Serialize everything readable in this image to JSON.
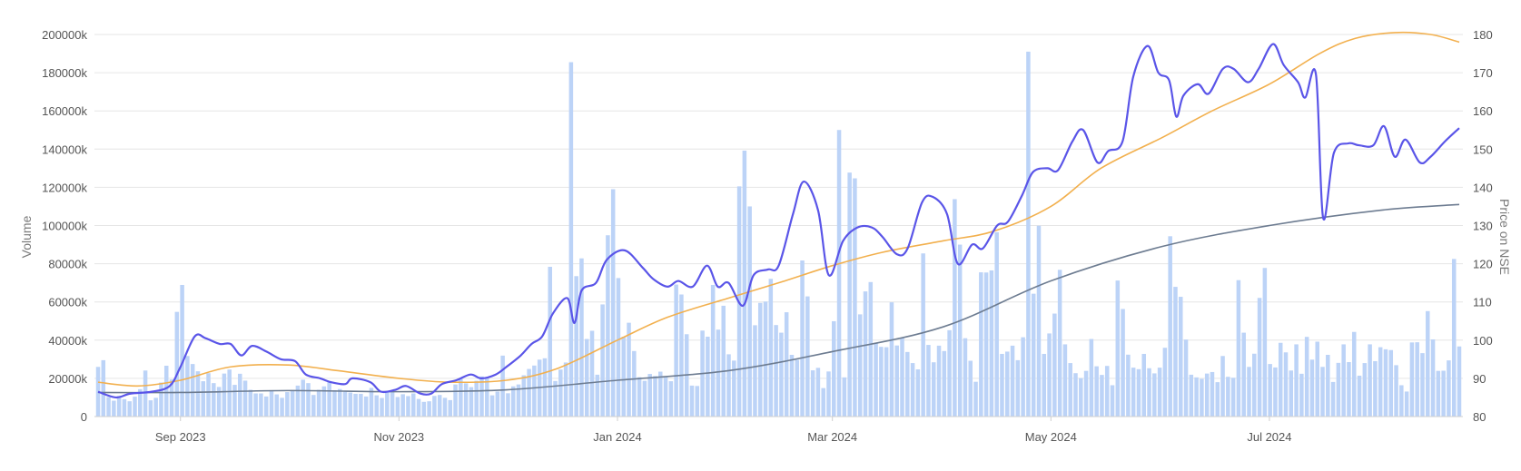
{
  "chart_data": {
    "type": "bar",
    "title": "",
    "legend": "none",
    "grid": true,
    "colors": {
      "volume_bars": "#bcd3f7",
      "price": "#5a55e8",
      "ma_short": "#f2b04e",
      "ma_long": "#6d7c91",
      "grid": "#e6e6e6",
      "text": "#555555"
    },
    "y_left": {
      "label": "Volume",
      "ylim": [
        0,
        200000
      ],
      "ticks": [
        "0",
        "20000k",
        "40000k",
        "60000k",
        "80000k",
        "100000k",
        "120000k",
        "140000k",
        "160000k",
        "180000k",
        "200000k"
      ]
    },
    "y_right": {
      "label": "Price on NSE",
      "ylim": [
        80,
        180
      ],
      "ticks": [
        "80",
        "90",
        "100",
        "110",
        "120",
        "130",
        "140",
        "150",
        "160",
        "170",
        "180"
      ]
    },
    "x_axis": {
      "start": "2023-08-09",
      "end": "2024-08-23",
      "ticks": [
        {
          "label": "Sep 2023",
          "date": "2023-09-01"
        },
        {
          "label": "Nov 2023",
          "date": "2023-11-01"
        },
        {
          "label": "Jan 2024",
          "date": "2024-01-01"
        },
        {
          "label": "Mar 2024",
          "date": "2024-03-01"
        },
        {
          "label": "May 2024",
          "date": "2024-05-01"
        },
        {
          "label": "Jul 2024",
          "date": "2024-07-01"
        }
      ]
    },
    "series": [
      {
        "type": "line",
        "axis": "right",
        "values": [
          [
            "2023-08-09",
            86.5
          ],
          [
            "2023-08-14",
            85.0
          ],
          [
            "2023-08-18",
            86.0
          ],
          [
            "2023-08-24",
            86.5
          ],
          [
            "2023-08-29",
            88.0
          ],
          [
            "2023-09-01",
            93.0
          ],
          [
            "2023-09-05",
            101.0
          ],
          [
            "2023-09-08",
            100.5
          ],
          [
            "2023-09-12",
            99.0
          ],
          [
            "2023-09-15",
            99.0
          ],
          [
            "2023-09-18",
            96.0
          ],
          [
            "2023-09-21",
            98.5
          ],
          [
            "2023-09-25",
            97.0
          ],
          [
            "2023-09-29",
            95.0
          ],
          [
            "2023-10-03",
            94.5
          ],
          [
            "2023-10-06",
            91.0
          ],
          [
            "2023-10-10",
            90.0
          ],
          [
            "2023-10-13",
            89.0
          ],
          [
            "2023-10-17",
            88.5
          ],
          [
            "2023-10-19",
            90.0
          ],
          [
            "2023-10-24",
            89.0
          ],
          [
            "2023-10-27",
            86.5
          ],
          [
            "2023-10-31",
            87.0
          ],
          [
            "2023-11-03",
            88.0
          ],
          [
            "2023-11-07",
            86.0
          ],
          [
            "2023-11-10",
            86.0
          ],
          [
            "2023-11-13",
            88.5
          ],
          [
            "2023-11-17",
            89.5
          ],
          [
            "2023-11-21",
            91.0
          ],
          [
            "2023-11-24",
            90.0
          ],
          [
            "2023-11-28",
            91.0
          ],
          [
            "2023-12-01",
            93.0
          ],
          [
            "2023-12-05",
            96.0
          ],
          [
            "2023-12-08",
            99.0
          ],
          [
            "2023-12-11",
            101.0
          ],
          [
            "2023-12-14",
            107.0
          ],
          [
            "2023-12-18",
            111.0
          ],
          [
            "2023-12-20",
            104.5
          ],
          [
            "2023-12-22",
            113.0
          ],
          [
            "2023-12-26",
            115.0
          ],
          [
            "2023-12-29",
            121.0
          ],
          [
            "2024-01-03",
            123.5
          ],
          [
            "2024-01-08",
            119.0
          ],
          [
            "2024-01-11",
            116.0
          ],
          [
            "2024-01-15",
            114.0
          ],
          [
            "2024-01-18",
            115.5
          ],
          [
            "2024-01-22",
            114.0
          ],
          [
            "2024-01-26",
            119.5
          ],
          [
            "2024-01-29",
            114.0
          ],
          [
            "2024-02-01",
            115.0
          ],
          [
            "2024-02-05",
            109.0
          ],
          [
            "2024-02-08",
            117.0
          ],
          [
            "2024-02-12",
            118.5
          ],
          [
            "2024-02-15",
            119.5
          ],
          [
            "2024-02-19",
            133.0
          ],
          [
            "2024-02-22",
            141.5
          ],
          [
            "2024-02-26",
            134.0
          ],
          [
            "2024-02-29",
            117.0
          ],
          [
            "2024-03-04",
            126.0
          ],
          [
            "2024-03-08",
            129.5
          ],
          [
            "2024-03-12",
            129.5
          ],
          [
            "2024-03-15",
            127.0
          ],
          [
            "2024-03-19",
            122.5
          ],
          [
            "2024-03-22",
            124.0
          ],
          [
            "2024-03-26",
            136.0
          ],
          [
            "2024-03-29",
            137.5
          ],
          [
            "2024-04-02",
            133.0
          ],
          [
            "2024-04-05",
            120.0
          ],
          [
            "2024-04-09",
            125.0
          ],
          [
            "2024-04-12",
            124.0
          ],
          [
            "2024-04-16",
            130.0
          ],
          [
            "2024-04-19",
            131.0
          ],
          [
            "2024-04-23",
            138.0
          ],
          [
            "2024-04-26",
            144.0
          ],
          [
            "2024-04-30",
            145.0
          ],
          [
            "2024-05-03",
            144.5
          ],
          [
            "2024-05-07",
            152.0
          ],
          [
            "2024-05-10",
            155.0
          ],
          [
            "2024-05-14",
            146.5
          ],
          [
            "2024-05-17",
            149.5
          ],
          [
            "2024-05-21",
            152.0
          ],
          [
            "2024-05-24",
            169.0
          ],
          [
            "2024-05-28",
            177.0
          ],
          [
            "2024-05-31",
            170.0
          ],
          [
            "2024-06-03",
            168.0
          ],
          [
            "2024-06-05",
            158.5
          ],
          [
            "2024-06-07",
            164.0
          ],
          [
            "2024-06-11",
            167.0
          ],
          [
            "2024-06-14",
            164.5
          ],
          [
            "2024-06-18",
            171.0
          ],
          [
            "2024-06-21",
            171.0
          ],
          [
            "2024-06-25",
            167.5
          ],
          [
            "2024-06-28",
            171.0
          ],
          [
            "2024-07-02",
            177.5
          ],
          [
            "2024-07-05",
            172.0
          ],
          [
            "2024-07-09",
            167.5
          ],
          [
            "2024-07-11",
            163.5
          ],
          [
            "2024-07-14",
            169.5
          ],
          [
            "2024-07-16",
            132.0
          ],
          [
            "2024-07-19",
            149.0
          ],
          [
            "2024-07-23",
            151.5
          ],
          [
            "2024-07-26",
            151.0
          ],
          [
            "2024-07-30",
            151.0
          ],
          [
            "2024-08-02",
            156.0
          ],
          [
            "2024-08-05",
            148.0
          ],
          [
            "2024-08-08",
            152.5
          ],
          [
            "2024-08-12",
            146.5
          ],
          [
            "2024-08-15",
            148.0
          ],
          [
            "2024-08-19",
            152.0
          ],
          [
            "2024-08-23",
            155.5
          ]
        ]
      },
      {
        "type": "line",
        "axis": "right",
        "values": [
          [
            "2023-08-09",
            89.0
          ],
          [
            "2023-08-20",
            88.0
          ],
          [
            "2023-09-01",
            89.5
          ],
          [
            "2023-09-15",
            93.0
          ],
          [
            "2023-10-01",
            93.5
          ],
          [
            "2023-10-15",
            92.0
          ],
          [
            "2023-11-01",
            90.0
          ],
          [
            "2023-11-15",
            89.0
          ],
          [
            "2023-12-01",
            89.5
          ],
          [
            "2023-12-15",
            92.5
          ],
          [
            "2024-01-01",
            100.0
          ],
          [
            "2024-01-15",
            106.0
          ],
          [
            "2024-02-01",
            111.0
          ],
          [
            "2024-02-15",
            115.0
          ],
          [
            "2024-03-01",
            119.5
          ],
          [
            "2024-03-15",
            123.0
          ],
          [
            "2024-04-01",
            126.0
          ],
          [
            "2024-04-15",
            128.5
          ],
          [
            "2024-05-01",
            135.0
          ],
          [
            "2024-05-15",
            145.0
          ],
          [
            "2024-06-01",
            153.0
          ],
          [
            "2024-06-15",
            160.0
          ],
          [
            "2024-07-01",
            167.0
          ],
          [
            "2024-07-15",
            175.0
          ],
          [
            "2024-07-25",
            179.0
          ],
          [
            "2024-08-05",
            180.5
          ],
          [
            "2024-08-15",
            180.0
          ],
          [
            "2024-08-23",
            178.0
          ]
        ]
      },
      {
        "type": "line",
        "axis": "right",
        "values": [
          [
            "2023-08-09",
            86.3
          ],
          [
            "2023-09-01",
            86.3
          ],
          [
            "2023-10-01",
            86.8
          ],
          [
            "2023-11-01",
            86.5
          ],
          [
            "2023-12-01",
            87.0
          ],
          [
            "2024-01-01",
            89.5
          ],
          [
            "2024-02-01",
            92.0
          ],
          [
            "2024-03-01",
            97.0
          ],
          [
            "2024-04-01",
            103.5
          ],
          [
            "2024-05-01",
            115.5
          ],
          [
            "2024-06-01",
            124.5
          ],
          [
            "2024-07-01",
            130.0
          ],
          [
            "2024-08-01",
            134.0
          ],
          [
            "2024-08-23",
            135.5
          ]
        ]
      },
      {
        "type": "bar",
        "axis": "left",
        "values": [
          26000,
          29500,
          10200,
          8300,
          10800,
          9100,
          8000,
          10400,
          14300,
          24100,
          8500,
          9800,
          17800,
          26600,
          19400,
          54800,
          68900,
          31700,
          27500,
          23700,
          18500,
          22700,
          17500,
          15500,
          22500,
          24600,
          16600,
          22400,
          18800,
          14000,
          12100,
          12100,
          10500,
          13800,
          11600,
          9800,
          12800,
          13900,
          16200,
          19300,
          17500,
          11300,
          14000,
          15800,
          18100,
          13800,
          14400,
          13000,
          12600,
          11900,
          11900,
          10500,
          15000,
          11100,
          9700,
          12600,
          12900,
          10200,
          11700,
          10700,
          12100,
          9200,
          7700,
          8000,
          10800,
          11300,
          9800,
          8600,
          16800,
          19800,
          17400,
          15400,
          18700,
          21000,
          19900,
          11100,
          13100,
          31900,
          12200,
          15800,
          16800,
          21600,
          24900,
          26700,
          29800,
          30500,
          78400,
          18600,
          24600,
          28300,
          185500,
          73500,
          82800,
          40600,
          44900,
          21900,
          58700,
          94900,
          119000,
          72500,
          41800,
          49100,
          34300,
          20600,
          18700,
          22300,
          21200,
          23500,
          20700,
          18500,
          69100,
          63900,
          43100,
          16200,
          16000,
          45000,
          41800,
          68900,
          45500,
          58000,
          32600,
          29300,
          120500,
          139200,
          110000,
          47800,
          59500,
          60200,
          72100,
          47900,
          43900,
          54600,
          32300,
          29700,
          81700,
          62900,
          24200,
          25500,
          14900,
          23600,
          49900,
          150000,
          20500,
          127700,
          124700,
          53500,
          65500,
          70400,
          38600,
          36500,
          36300,
          59800,
          37200,
          41100,
          33800,
          28000,
          24700,
          85400,
          37500,
          28400,
          37100,
          34300,
          45200,
          113800,
          90000,
          41000,
          29200,
          18200,
          75500,
          75400,
          76500,
          96500,
          32800,
          34000,
          37100,
          29500,
          41500,
          191000,
          64300,
          99900,
          32800,
          43500,
          53900,
          76800,
          37800,
          28000,
          22700,
          20100,
          23900,
          40600,
          26300,
          21800,
          26500,
          16400,
          71200,
          56300,
          32400,
          25600,
          24800,
          32800,
          25300,
          22600,
          25600,
          36000,
          94400,
          67900,
          62700,
          40300,
          21900,
          20500,
          19700,
          22500,
          23300,
          18000,
          31700,
          20800,
          20300,
          71400,
          43900,
          26000,
          32900,
          62100,
          77800,
          27500,
          25700,
          38600,
          33600,
          24100,
          37800,
          22400,
          41700,
          29800,
          39200,
          26000,
          32300,
          18100,
          28100,
          37800,
          28500,
          44300,
          21400,
          28000,
          37800,
          29000,
          36300,
          35200,
          34800,
          26900,
          16400,
          13100,
          38800,
          38900,
          33200,
          55200,
          40400,
          23900,
          24000,
          29400,
          82500,
          36700
        ]
      }
    ]
  }
}
